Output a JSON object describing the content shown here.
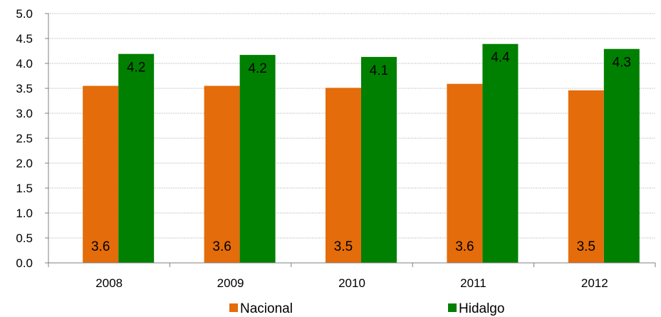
{
  "chart_data": {
    "type": "bar",
    "categories": [
      "2008",
      "2009",
      "2010",
      "2011",
      "2012"
    ],
    "series": [
      {
        "name": "Nacional",
        "color": "#e46c0a",
        "values": [
          3.55,
          3.55,
          3.51,
          3.59,
          3.46
        ],
        "labels": [
          "3.6",
          "3.6",
          "3.5",
          "3.6",
          "3.5"
        ]
      },
      {
        "name": "Hidalgo",
        "color": "#008000",
        "values": [
          4.19,
          4.17,
          4.13,
          4.39,
          4.29
        ],
        "labels": [
          "4.2",
          "4.2",
          "4.1",
          "4.4",
          "4.3"
        ]
      }
    ],
    "ylim": [
      0,
      5
    ],
    "yticks": [
      "0.0",
      "0.5",
      "1.0",
      "1.5",
      "2.0",
      "2.5",
      "3.0",
      "3.5",
      "4.0",
      "4.5",
      "5.0"
    ],
    "grid": true,
    "legend": "bottom",
    "title": "",
    "xlabel": "",
    "ylabel": ""
  }
}
